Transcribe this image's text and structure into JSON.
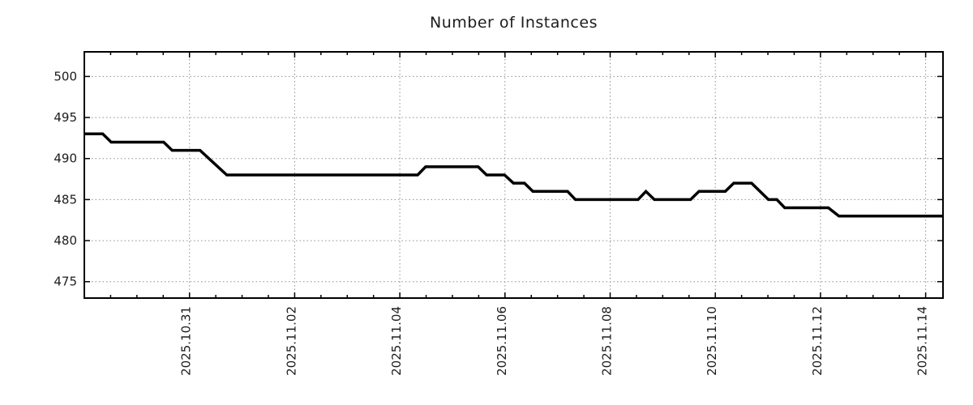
{
  "chart_data": {
    "type": "line",
    "title": "Number of Instances",
    "xlabel": "",
    "ylabel": "",
    "legend": "none",
    "grid": "dotted",
    "x_axis": {
      "kind": "time-days",
      "range_days": [
        0,
        16.33
      ],
      "minor_tick_interval_days": 0.5,
      "major_ticks": [
        {
          "day": 2,
          "label": "2025.10.31"
        },
        {
          "day": 4,
          "label": "2025.11.02"
        },
        {
          "day": 6,
          "label": "2025.11.04"
        },
        {
          "day": 8,
          "label": "2025.11.06"
        },
        {
          "day": 10,
          "label": "2025.11.08"
        },
        {
          "day": 12,
          "label": "2025.11.10"
        },
        {
          "day": 14,
          "label": "2025.11.12"
        },
        {
          "day": 16,
          "label": "2025.11.14"
        }
      ]
    },
    "y_axis": {
      "range": [
        473,
        503
      ],
      "ticks": [
        475,
        480,
        485,
        490,
        495,
        500
      ]
    },
    "series": [
      {
        "name": "instances",
        "color": "#000000",
        "line_width": 3.5,
        "points": [
          [
            0.0,
            493
          ],
          [
            0.35,
            493
          ],
          [
            0.51,
            492
          ],
          [
            1.51,
            492
          ],
          [
            1.67,
            491
          ],
          [
            2.2,
            491
          ],
          [
            2.71,
            488
          ],
          [
            6.34,
            488
          ],
          [
            6.49,
            489
          ],
          [
            7.49,
            489
          ],
          [
            7.65,
            488
          ],
          [
            7.99,
            488
          ],
          [
            8.16,
            487
          ],
          [
            8.37,
            487
          ],
          [
            8.53,
            486
          ],
          [
            9.19,
            486
          ],
          [
            9.34,
            485
          ],
          [
            10.53,
            485
          ],
          [
            10.68,
            486
          ],
          [
            10.84,
            485
          ],
          [
            11.53,
            485
          ],
          [
            11.69,
            486
          ],
          [
            12.19,
            486
          ],
          [
            12.35,
            487
          ],
          [
            12.69,
            487
          ],
          [
            13.01,
            485
          ],
          [
            13.17,
            485
          ],
          [
            13.32,
            484
          ],
          [
            14.15,
            484
          ],
          [
            14.35,
            483
          ],
          [
            16.33,
            483
          ]
        ]
      }
    ],
    "colors": {
      "line": "#000000",
      "border": "#000000",
      "gridline": "#8f8f8f",
      "text": "#1c1c1c",
      "background": "#ffffff"
    }
  }
}
